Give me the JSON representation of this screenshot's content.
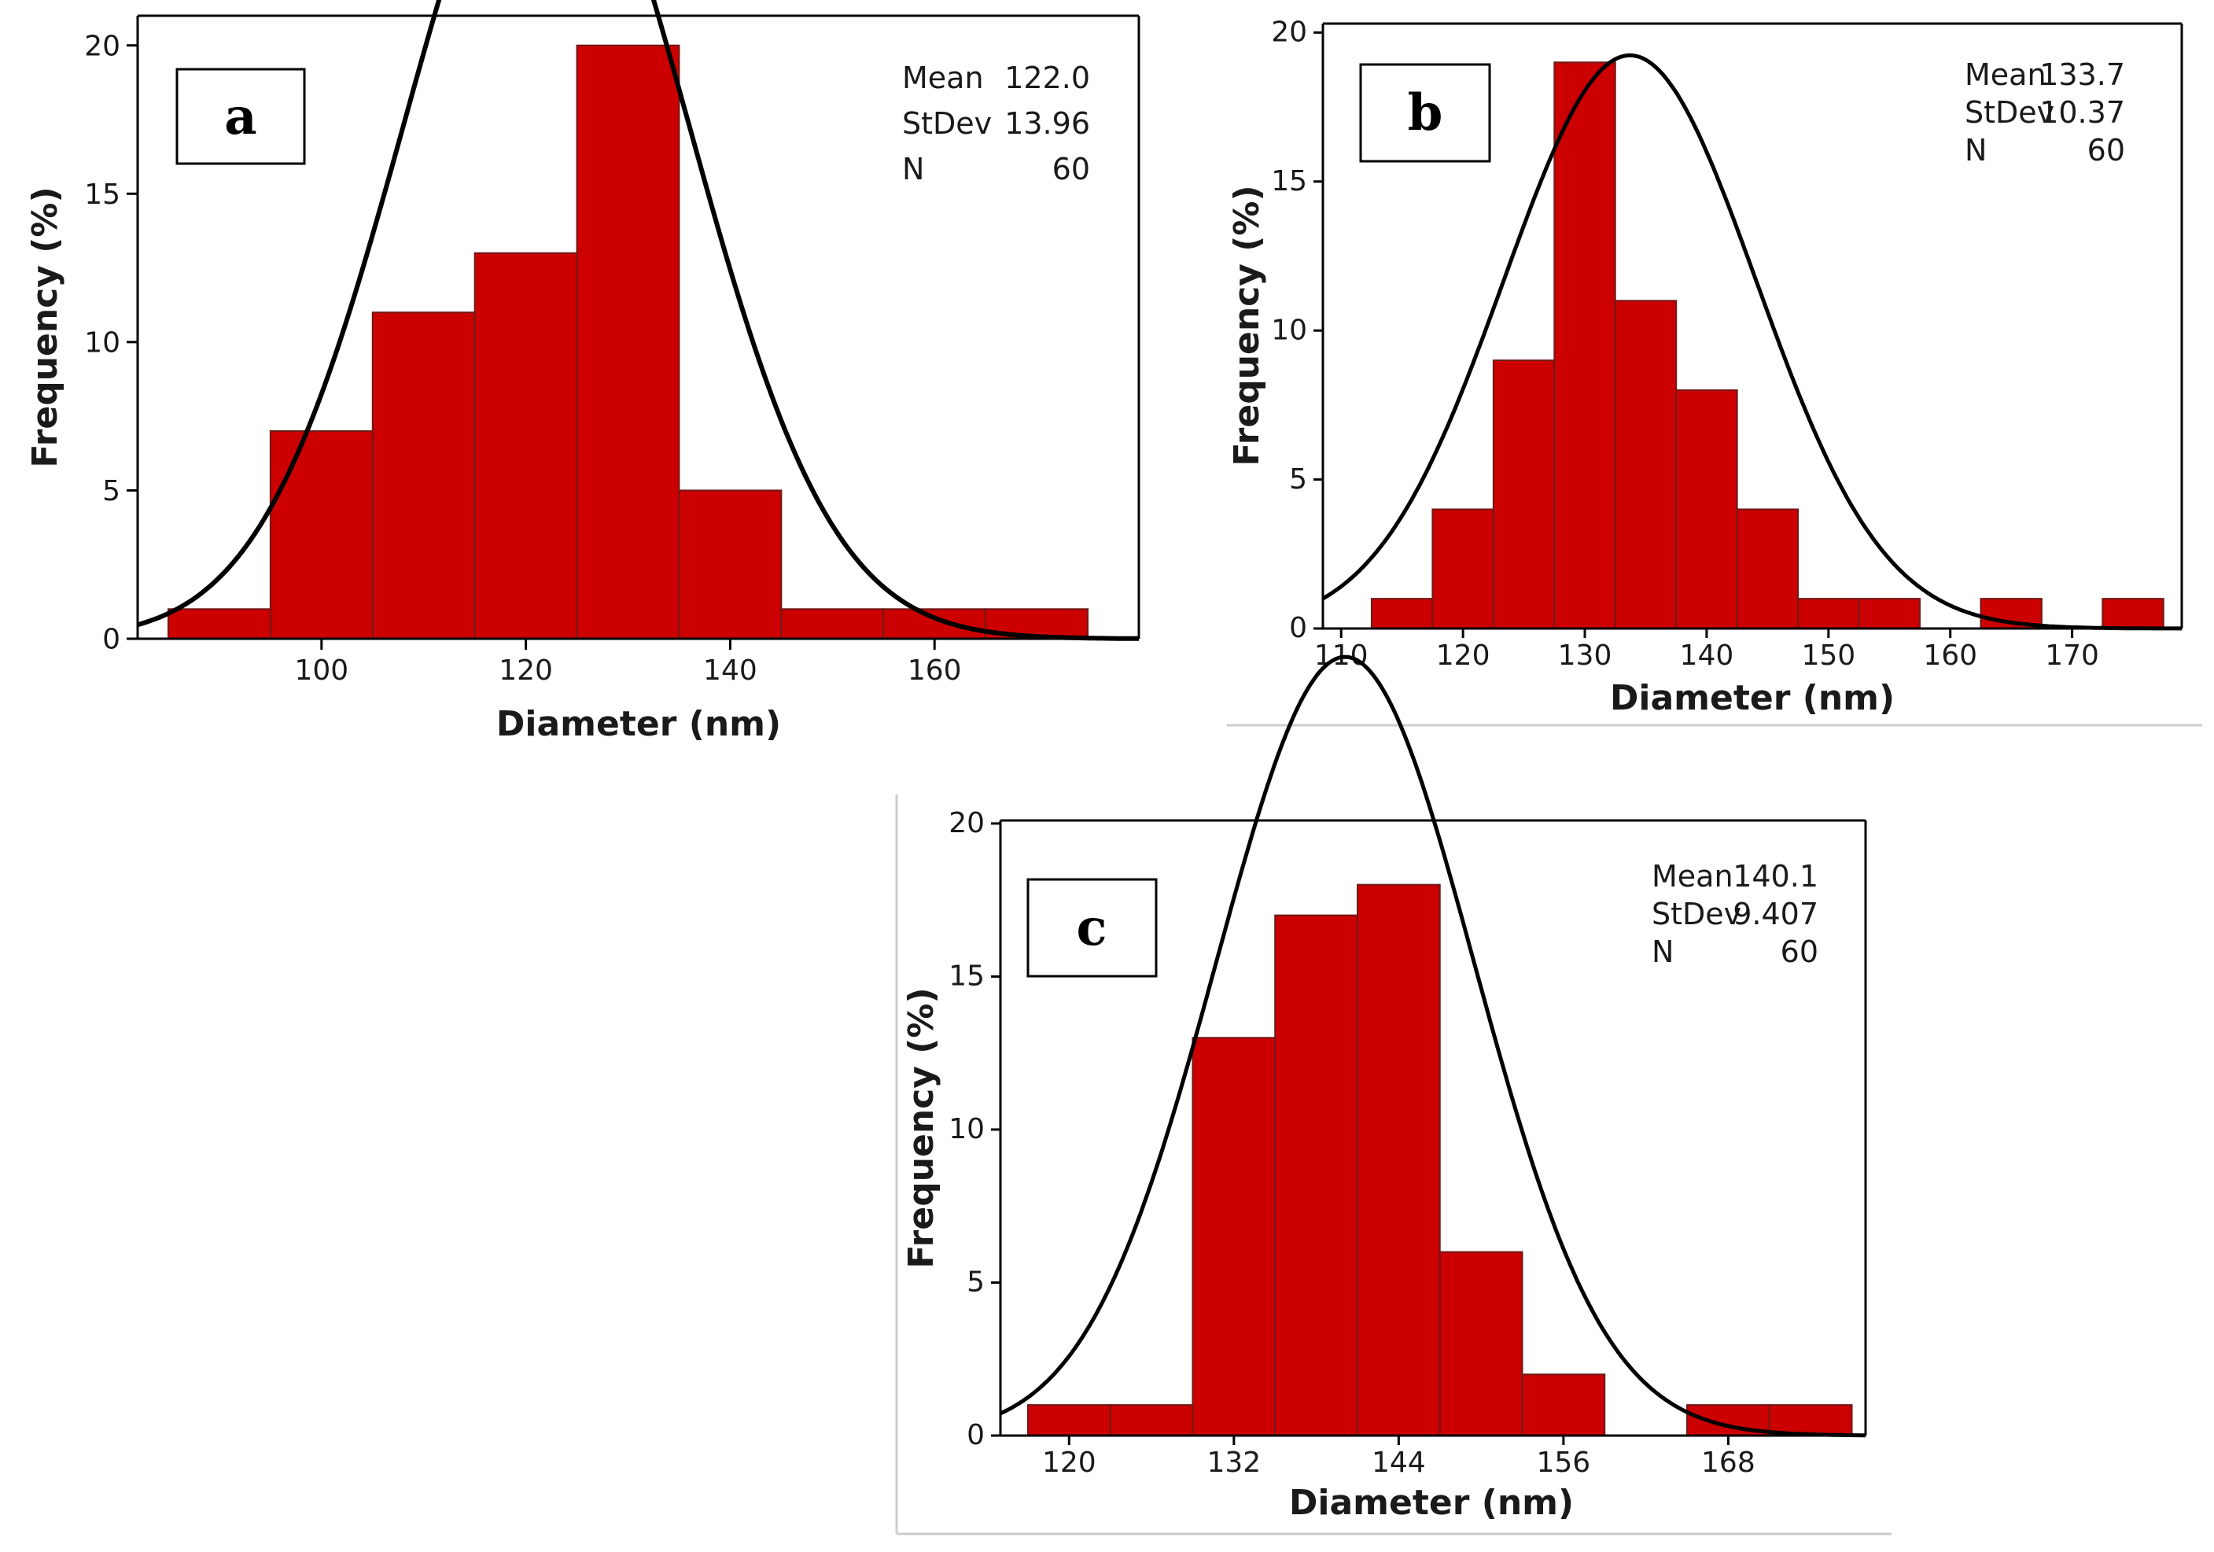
{
  "chart_data": [
    {
      "type": "bar",
      "panel_label": "a",
      "xlabel": "Diameter (nm)",
      "ylabel": "Frequency (%)",
      "xlim": [
        82,
        180
      ],
      "ylim": [
        0,
        21
      ],
      "x_ticks": [
        100,
        120,
        140,
        160
      ],
      "y_ticks": [
        0,
        5,
        10,
        15,
        20
      ],
      "bin_edges": [
        85,
        95,
        105,
        115,
        125,
        135,
        145,
        155,
        165,
        175
      ],
      "values": [
        1,
        7,
        11,
        13,
        20,
        5,
        1,
        1,
        1
      ],
      "fit_curve": "normal",
      "stats": [
        {
          "label": "Mean",
          "value": "122.0"
        },
        {
          "label": "StDev",
          "value": "13.96"
        },
        {
          "label": "N",
          "value": "60"
        }
      ],
      "mean": 122.0,
      "stdev": 13.96,
      "fill_color": "#cc0000",
      "edge_color": "#6e1a1a",
      "curve_color": "#000000"
    },
    {
      "type": "bar",
      "panel_label": "b",
      "xlabel": "Diameter (nm)",
      "ylabel": "Frequency (%)",
      "xlim": [
        108.5,
        179
      ],
      "ylim": [
        0,
        20.3
      ],
      "x_ticks": [
        110,
        120,
        130,
        140,
        150,
        160,
        170
      ],
      "y_ticks": [
        0,
        5,
        10,
        15,
        20
      ],
      "bin_edges": [
        112.5,
        117.5,
        122.5,
        127.5,
        132.5,
        137.5,
        142.5,
        147.5,
        152.5,
        157.5,
        162.5,
        167.5,
        172.5,
        177.5
      ],
      "values": [
        1,
        4,
        9,
        19,
        11,
        8,
        4,
        1,
        1,
        0,
        1,
        0,
        1
      ],
      "fit_curve": "normal",
      "stats": [
        {
          "label": "Mean",
          "value": "133.7"
        },
        {
          "label": "StDev",
          "value": "10.37"
        },
        {
          "label": "N",
          "value": "60"
        }
      ],
      "mean": 133.7,
      "stdev": 10.37,
      "fill_color": "#cc0000",
      "edge_color": "#6e1a1a",
      "curve_color": "#000000"
    },
    {
      "type": "bar",
      "panel_label": "c",
      "xlabel": "Diameter (nm)",
      "ylabel": "Frequency (%)",
      "xlim": [
        115,
        178
      ],
      "ylim": [
        0,
        20.1
      ],
      "x_ticks": [
        120,
        132,
        144,
        156,
        168
      ],
      "y_ticks": [
        0,
        5,
        10,
        15,
        20
      ],
      "bin_edges": [
        117,
        123,
        129,
        135,
        141,
        147,
        153,
        159,
        165,
        171,
        177
      ],
      "values": [
        1,
        1,
        13,
        17,
        18,
        6,
        2,
        0,
        1,
        1
      ],
      "fit_curve": "normal",
      "stats": [
        {
          "label": "Mean",
          "value": "140.1"
        },
        {
          "label": "StDev",
          "value": "9.407"
        },
        {
          "label": "N",
          "value": "60"
        }
      ],
      "mean": 140.1,
      "stdev": 9.407,
      "fill_color": "#cc0000",
      "edge_color": "#6e1a1a",
      "curve_color": "#000000"
    }
  ]
}
